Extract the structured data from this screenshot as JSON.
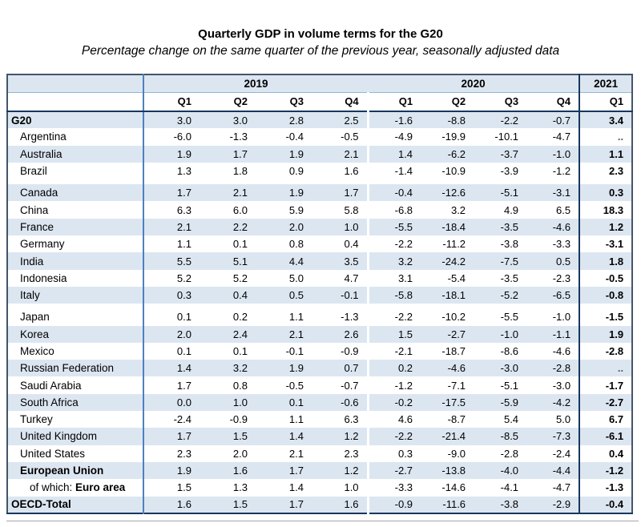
{
  "title": "Quarterly GDP in volume terms for the G20",
  "subtitle": "Percentage change on the same quarter of the previous year, seasonally adjusted data",
  "table": {
    "year_groups": [
      {
        "label": "2019",
        "quarters": [
          "Q1",
          "Q2",
          "Q3",
          "Q4"
        ]
      },
      {
        "label": "2020",
        "quarters": [
          "Q1",
          "Q2",
          "Q3",
          "Q4"
        ]
      },
      {
        "label": "2021",
        "quarters": [
          "Q1"
        ]
      }
    ],
    "missing_value_symbol": "..",
    "rows": [
      {
        "label": "G20",
        "bold": true,
        "indent": 0,
        "values": [
          "3.0",
          "3.0",
          "2.8",
          "2.5",
          "-1.6",
          "-8.8",
          "-2.2",
          "-0.7",
          "3.4"
        ]
      },
      {
        "label": "Argentina",
        "bold": false,
        "indent": 1,
        "values": [
          "-6.0",
          "-1.3",
          "-0.4",
          "-0.5",
          "-4.9",
          "-19.9",
          "-10.1",
          "-4.7",
          ".."
        ]
      },
      {
        "label": "Australia",
        "bold": false,
        "indent": 1,
        "values": [
          "1.9",
          "1.7",
          "1.9",
          "2.1",
          "1.4",
          "-6.2",
          "-3.7",
          "-1.0",
          "1.1"
        ]
      },
      {
        "label": "Brazil",
        "bold": false,
        "indent": 1,
        "values": [
          "1.3",
          "1.8",
          "0.9",
          "1.6",
          "-1.4",
          "-10.9",
          "-3.9",
          "-1.2",
          "2.3"
        ]
      },
      {
        "label": "Canada",
        "bold": false,
        "indent": 1,
        "gap_before": true,
        "values": [
          "1.7",
          "2.1",
          "1.9",
          "1.7",
          "-0.4",
          "-12.6",
          "-5.1",
          "-3.1",
          "0.3"
        ]
      },
      {
        "label": "China",
        "bold": false,
        "indent": 1,
        "values": [
          "6.3",
          "6.0",
          "5.9",
          "5.8",
          "-6.8",
          "3.2",
          "4.9",
          "6.5",
          "18.3"
        ]
      },
      {
        "label": "France",
        "bold": false,
        "indent": 1,
        "values": [
          "2.1",
          "2.2",
          "2.0",
          "1.0",
          "-5.5",
          "-18.4",
          "-3.5",
          "-4.6",
          "1.2"
        ]
      },
      {
        "label": "Germany",
        "bold": false,
        "indent": 1,
        "values": [
          "1.1",
          "0.1",
          "0.8",
          "0.4",
          "-2.2",
          "-11.2",
          "-3.8",
          "-3.3",
          "-3.1"
        ]
      },
      {
        "label": "India",
        "bold": false,
        "indent": 1,
        "values": [
          "5.5",
          "5.1",
          "4.4",
          "3.5",
          "3.2",
          "-24.2",
          "-7.5",
          "0.5",
          "1.8"
        ]
      },
      {
        "label": "Indonesia",
        "bold": false,
        "indent": 1,
        "values": [
          "5.2",
          "5.2",
          "5.0",
          "4.7",
          "3.1",
          "-5.4",
          "-3.5",
          "-2.3",
          "-0.5"
        ]
      },
      {
        "label": "Italy",
        "bold": false,
        "indent": 1,
        "values": [
          "0.3",
          "0.4",
          "0.5",
          "-0.1",
          "-5.8",
          "-18.1",
          "-5.2",
          "-6.5",
          "-0.8"
        ]
      },
      {
        "label": "Japan",
        "bold": false,
        "indent": 1,
        "gap_before": true,
        "values": [
          "0.1",
          "0.2",
          "1.1",
          "-1.3",
          "-2.2",
          "-10.2",
          "-5.5",
          "-1.0",
          "-1.5"
        ]
      },
      {
        "label": "Korea",
        "bold": false,
        "indent": 1,
        "values": [
          "2.0",
          "2.4",
          "2.1",
          "2.6",
          "1.5",
          "-2.7",
          "-1.0",
          "-1.1",
          "1.9"
        ]
      },
      {
        "label": "Mexico",
        "bold": false,
        "indent": 1,
        "values": [
          "0.1",
          "0.1",
          "-0.1",
          "-0.9",
          "-2.1",
          "-18.7",
          "-8.6",
          "-4.6",
          "-2.8"
        ]
      },
      {
        "label": "Russian Federation",
        "bold": false,
        "indent": 1,
        "values": [
          "1.4",
          "3.2",
          "1.9",
          "0.7",
          "0.2",
          "-4.6",
          "-3.0",
          "-2.8",
          ".."
        ]
      },
      {
        "label": "Saudi Arabia",
        "bold": false,
        "indent": 1,
        "values": [
          "1.7",
          "0.8",
          "-0.5",
          "-0.7",
          "-1.2",
          "-7.1",
          "-5.1",
          "-3.0",
          "-1.7"
        ]
      },
      {
        "label": "South Africa",
        "bold": false,
        "indent": 1,
        "values": [
          "0.0",
          "1.0",
          "0.1",
          "-0.6",
          "-0.2",
          "-17.5",
          "-5.9",
          "-4.2",
          "-2.7"
        ]
      },
      {
        "label": "Turkey",
        "bold": false,
        "indent": 1,
        "values": [
          "-2.4",
          "-0.9",
          "1.1",
          "6.3",
          "4.6",
          "-8.7",
          "5.4",
          "5.0",
          "6.7"
        ]
      },
      {
        "label": "United Kingdom",
        "bold": false,
        "indent": 1,
        "values": [
          "1.7",
          "1.5",
          "1.4",
          "1.2",
          "-2.2",
          "-21.4",
          "-8.5",
          "-7.3",
          "-6.1"
        ]
      },
      {
        "label": "United States",
        "bold": false,
        "indent": 1,
        "values": [
          "2.3",
          "2.0",
          "2.1",
          "2.3",
          "0.3",
          "-9.0",
          "-2.8",
          "-2.4",
          "0.4"
        ]
      },
      {
        "label": "European Union",
        "bold": true,
        "indent": 1,
        "values": [
          "1.9",
          "1.6",
          "1.7",
          "1.2",
          "-2.7",
          "-13.8",
          "-4.0",
          "-4.4",
          "-1.2"
        ]
      },
      {
        "label": "Euro area",
        "prefix": "of which: ",
        "bold": true,
        "indent": 2,
        "values": [
          "1.5",
          "1.3",
          "1.4",
          "1.0",
          "-3.3",
          "-14.6",
          "-4.1",
          "-4.7",
          "-1.3"
        ]
      },
      {
        "label": "OECD-Total",
        "bold": true,
        "indent": 0,
        "values": [
          "1.6",
          "1.5",
          "1.7",
          "1.6",
          "-0.9",
          "-11.6",
          "-3.8",
          "-2.9",
          "-0.4"
        ]
      }
    ]
  },
  "colors": {
    "stripe_blue": "#dce6f1",
    "header_blue": "#dce6f1",
    "strong_line_navy": "#17375e",
    "country_divider_blue": "#4f81bd",
    "year_underline_blue": "#95b3d7",
    "outer_border": "#44546a",
    "shadow_gray": "#a6a6a6",
    "missing_value_gray": "#595959"
  }
}
